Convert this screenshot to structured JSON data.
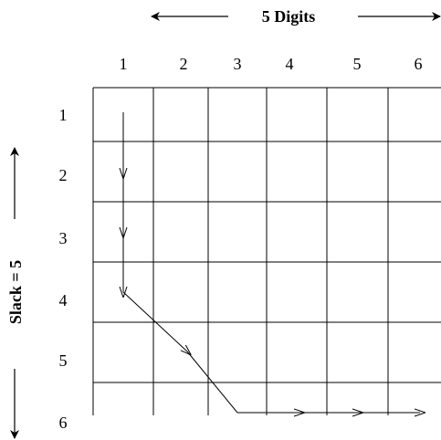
{
  "top_title": "5 Digits",
  "side_title": "Slack = 5",
  "column_labels": [
    "1",
    "2",
    "3",
    "4",
    "5",
    "6"
  ],
  "row_labels": [
    "1",
    "2",
    "3",
    "4",
    "5",
    "6"
  ]
}
